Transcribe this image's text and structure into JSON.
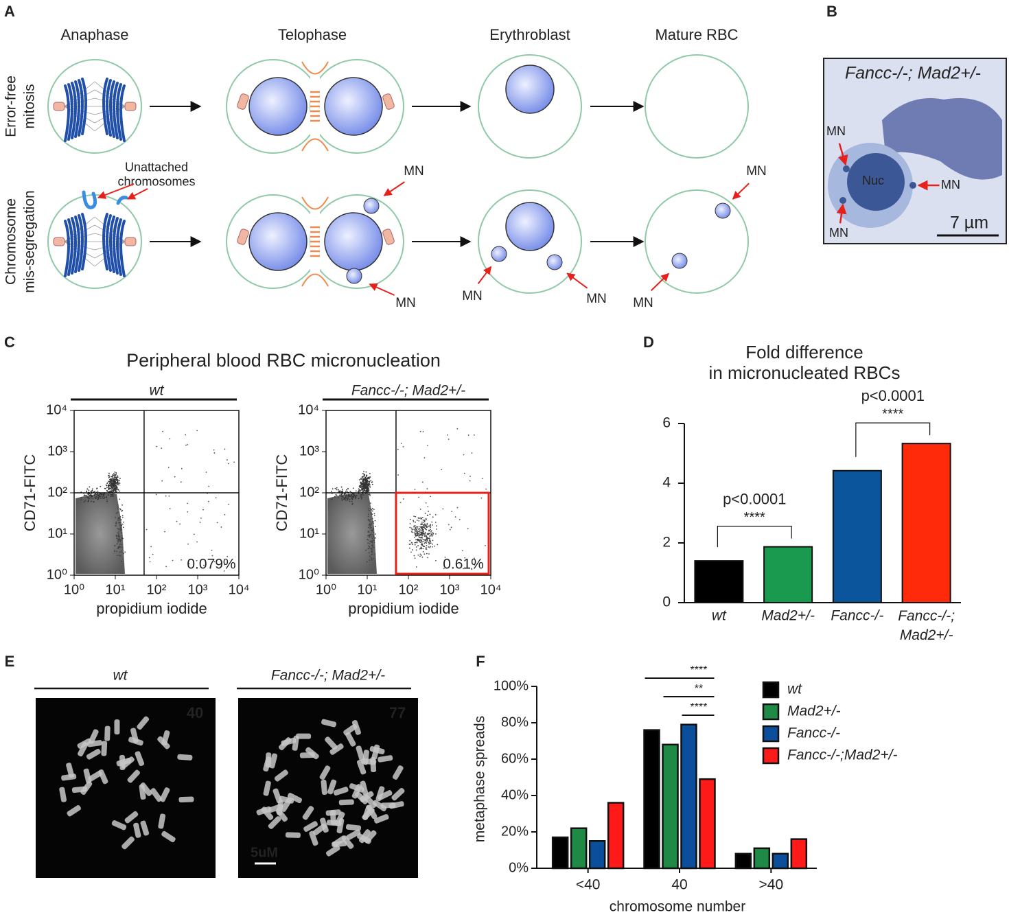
{
  "panel_labels": [
    "A",
    "B",
    "C",
    "D",
    "E",
    "F"
  ],
  "diagram": {
    "stages": [
      "Anaphase",
      "Telophase",
      "Erythroblast",
      "Mature RBC"
    ],
    "rows": [
      "Error-free\nmitosis",
      "Chromosome\nmis-segregation"
    ],
    "unattached": "Unattached\nchromosomes",
    "mn_labels": [
      "MN",
      "MN",
      "MN",
      "MN",
      "MN",
      "MN"
    ]
  },
  "micrograph": {
    "title": "Fancc-/-; Mad2+/-",
    "nucleus": "Nuc",
    "mn_labels": [
      "MN",
      "MN",
      "MN"
    ],
    "scale_bar": "7 µm"
  },
  "flow_title": "Peripheral blood RBC micronucleation",
  "chart_data": [
    {
      "type": "flow",
      "title": "wt",
      "xlabel": "propidium iodide",
      "ylabel": "CD71-FITC",
      "log": true,
      "xlim": [
        1,
        10000
      ],
      "ylim": [
        1,
        10000
      ],
      "xticks": [
        {
          "value": 1,
          "label": "10⁰"
        },
        {
          "value": 10,
          "label": "10¹"
        },
        {
          "value": 100,
          "label": "10²"
        },
        {
          "value": 1000,
          "label": "10³"
        },
        {
          "value": 10000,
          "label": "10⁴"
        }
      ],
      "yticks": [
        {
          "value": 1,
          "label": "10⁰"
        },
        {
          "value": 10,
          "label": "10¹"
        },
        {
          "value": 100,
          "label": "10²"
        },
        {
          "value": 1000,
          "label": "10³"
        },
        {
          "value": 10000,
          "label": "10⁴"
        }
      ],
      "quadrant": {
        "x": 50,
        "y": 100
      },
      "annotation": "0.079%"
    },
    {
      "type": "flow",
      "title": "Fancc-/-; Mad2+/-",
      "xlabel": "propidium iodide",
      "ylabel": "CD71-FITC",
      "log": true,
      "xlim": [
        1,
        10000
      ],
      "ylim": [
        1,
        10000
      ],
      "xticks": [
        {
          "value": 1,
          "label": "10⁰"
        },
        {
          "value": 10,
          "label": "10¹"
        },
        {
          "value": 100,
          "label": "10²"
        },
        {
          "value": 1000,
          "label": "10³"
        },
        {
          "value": 10000,
          "label": "10⁴"
        }
      ],
      "yticks": [
        {
          "value": 1,
          "label": "10⁰"
        },
        {
          "value": 10,
          "label": "10¹"
        },
        {
          "value": 100,
          "label": "10²"
        },
        {
          "value": 1000,
          "label": "10³"
        },
        {
          "value": 10000,
          "label": "10⁴"
        }
      ],
      "quadrant": {
        "x": 50,
        "y": 100
      },
      "annotation": "0.61%",
      "gate_color": "#e8201c"
    },
    {
      "type": "bar",
      "title": "Fold difference\nin micronucleated RBCs",
      "categories": [
        "wt",
        "Mad2+/-",
        "Fancc-/-",
        "Fancc-/-;\nMad2+/-"
      ],
      "values": [
        1.4,
        1.87,
        4.42,
        5.33
      ],
      "colors": [
        "#000000",
        "#1a9a4e",
        "#0a559b",
        "#ff2a0a"
      ],
      "ylim": [
        0,
        6
      ],
      "yticks": [
        0,
        2,
        4,
        6
      ],
      "annotations": [
        {
          "text": "p<0.0001",
          "stars": "****"
        },
        {
          "text": "p<0.0001",
          "stars": "****"
        }
      ]
    },
    {
      "type": "grouped-bar",
      "ylabel": "metaphase spreads",
      "xlabel": "chromosome number",
      "categories": [
        "<40",
        "40",
        ">40"
      ],
      "series": [
        {
          "name": "wt",
          "color": "#000000",
          "values": [
            17,
            76,
            8
          ]
        },
        {
          "name": "Mad2+/-",
          "color": "#1e8a45",
          "values": [
            22,
            68,
            11
          ]
        },
        {
          "name": "Fancc-/-",
          "color": "#0b4f9c",
          "values": [
            15,
            79,
            8
          ]
        },
        {
          "name": "Fancc-/-;Mad2+/-",
          "color": "#ff1a1a",
          "values": [
            36,
            49,
            16
          ]
        }
      ],
      "ylim": [
        0,
        100
      ],
      "yticks": [
        {
          "value": 0,
          "label": "0%"
        },
        {
          "value": 20,
          "label": "20%"
        },
        {
          "value": 40,
          "label": "40%"
        },
        {
          "value": 60,
          "label": "60%"
        },
        {
          "value": 80,
          "label": "80%"
        },
        {
          "value": 100,
          "label": "100%"
        }
      ],
      "significance": [
        "****",
        "**",
        "****"
      ]
    }
  ],
  "karyotypes": [
    {
      "title": "wt",
      "count": 40
    },
    {
      "title": "Fancc-/-; Mad2+/-",
      "count": 77,
      "scale_bar": "5uM"
    }
  ]
}
